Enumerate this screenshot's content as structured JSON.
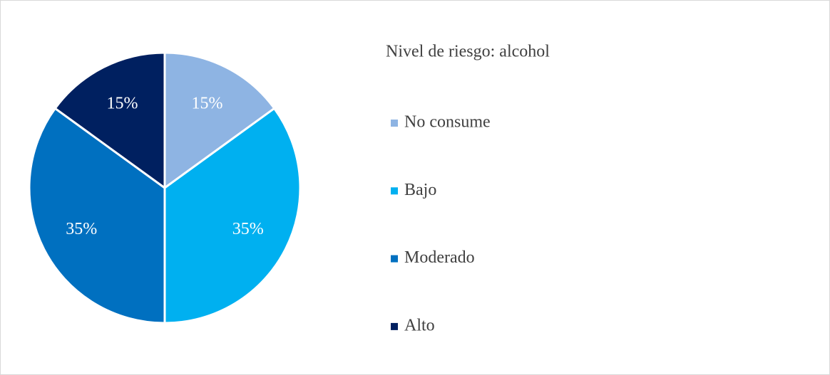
{
  "chart_data": {
    "type": "pie",
    "title": "Nivel de riesgo: alcohol",
    "categories": [
      "No consume",
      "Bajo",
      "Moderado",
      "Alto"
    ],
    "values": [
      15,
      35,
      35,
      15
    ],
    "value_labels": [
      "15%",
      "35%",
      "35%",
      "15%"
    ],
    "colors": [
      "#8eb4e3",
      "#00b0f0",
      "#0070c0",
      "#002060"
    ],
    "legend": "right"
  }
}
